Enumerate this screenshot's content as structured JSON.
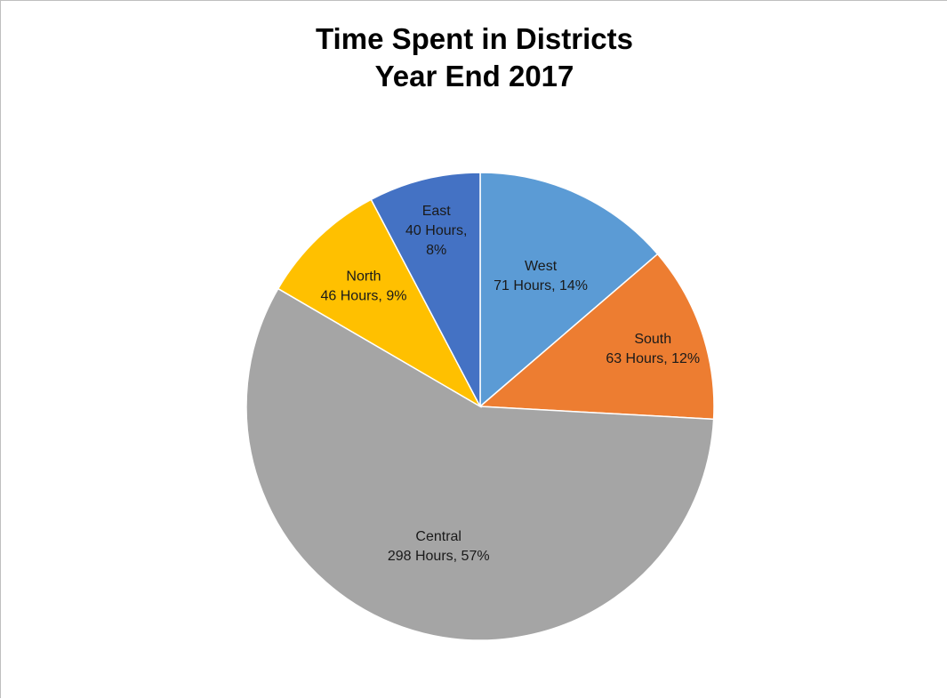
{
  "chart_data": {
    "type": "pie",
    "title": [
      "Time Spent in Districts",
      "Year End 2017"
    ],
    "unit": "Hours",
    "slices": [
      {
        "name": "West",
        "value": 71,
        "percent": "14%",
        "color": "#5B9BD5",
        "label_lines": [
          "West",
          "71 Hours, 14%"
        ]
      },
      {
        "name": "South",
        "value": 63,
        "percent": "12%",
        "color": "#ED7D31",
        "label_lines": [
          "South",
          "63 Hours, 12%"
        ]
      },
      {
        "name": "Central",
        "value": 298,
        "percent": "57%",
        "color": "#A5A5A5",
        "label_lines": [
          "Central",
          "298 Hours, 57%"
        ]
      },
      {
        "name": "North",
        "value": 46,
        "percent": "9%",
        "color": "#FFC000",
        "label_lines": [
          "North",
          "46 Hours, 9%"
        ]
      },
      {
        "name": "East",
        "value": 40,
        "percent": "8%",
        "color": "#4472C4",
        "label_lines": [
          "East",
          "40 Hours,",
          "8%"
        ]
      }
    ],
    "legend": "none",
    "data_labels": "inside"
  }
}
